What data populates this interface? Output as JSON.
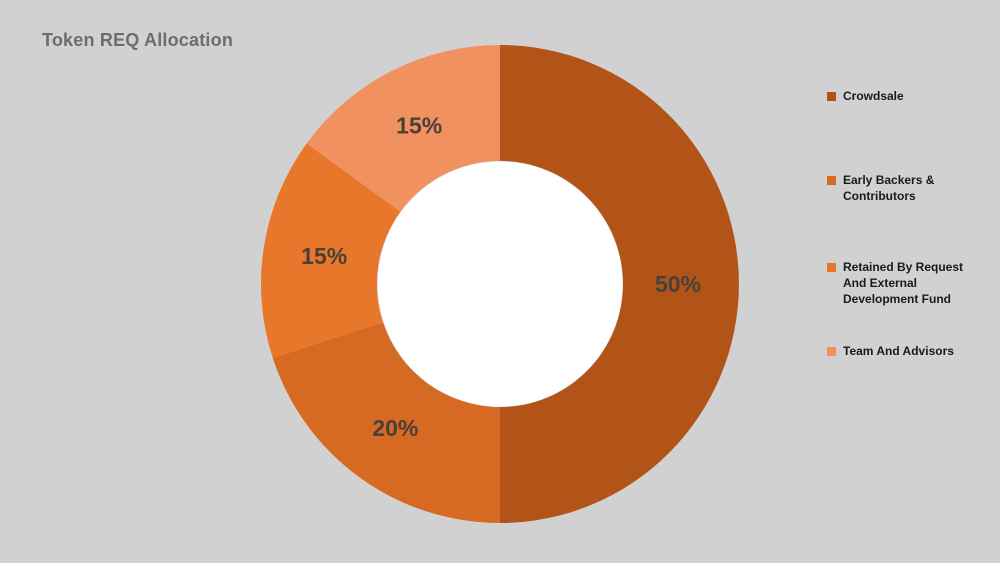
{
  "title": "Token REQ Allocation",
  "chart_data": {
    "type": "pie",
    "subtype": "donut",
    "title": "Token REQ Allocation",
    "categories": [
      "Crowdsale",
      "Early Backers & Contributors",
      "Retained By Request And External Development Fund",
      "Team And Advisors"
    ],
    "values": [
      50,
      20,
      15,
      15
    ],
    "unit": "%",
    "start_angle_deg": 0,
    "direction": "clockwise",
    "inner_radius_ratio": 0.515,
    "legend_position": "right",
    "background_color": "#d1d1d1",
    "hole_color": "#ffffff",
    "label_color": "#494139",
    "segments": [
      {
        "label": "Crowdsale",
        "value": 50,
        "display": "50%",
        "color": "#b25418"
      },
      {
        "label": "Early Backers & Contributors",
        "value": 20,
        "display": "20%",
        "color": "#d66a23"
      },
      {
        "label": "Retained By Request And External Development Fund",
        "value": 15,
        "display": "15%",
        "color": "#e8772b"
      },
      {
        "label": "Team And Advisors",
        "value": 15,
        "display": "15%",
        "color": "#f0915f"
      }
    ]
  }
}
